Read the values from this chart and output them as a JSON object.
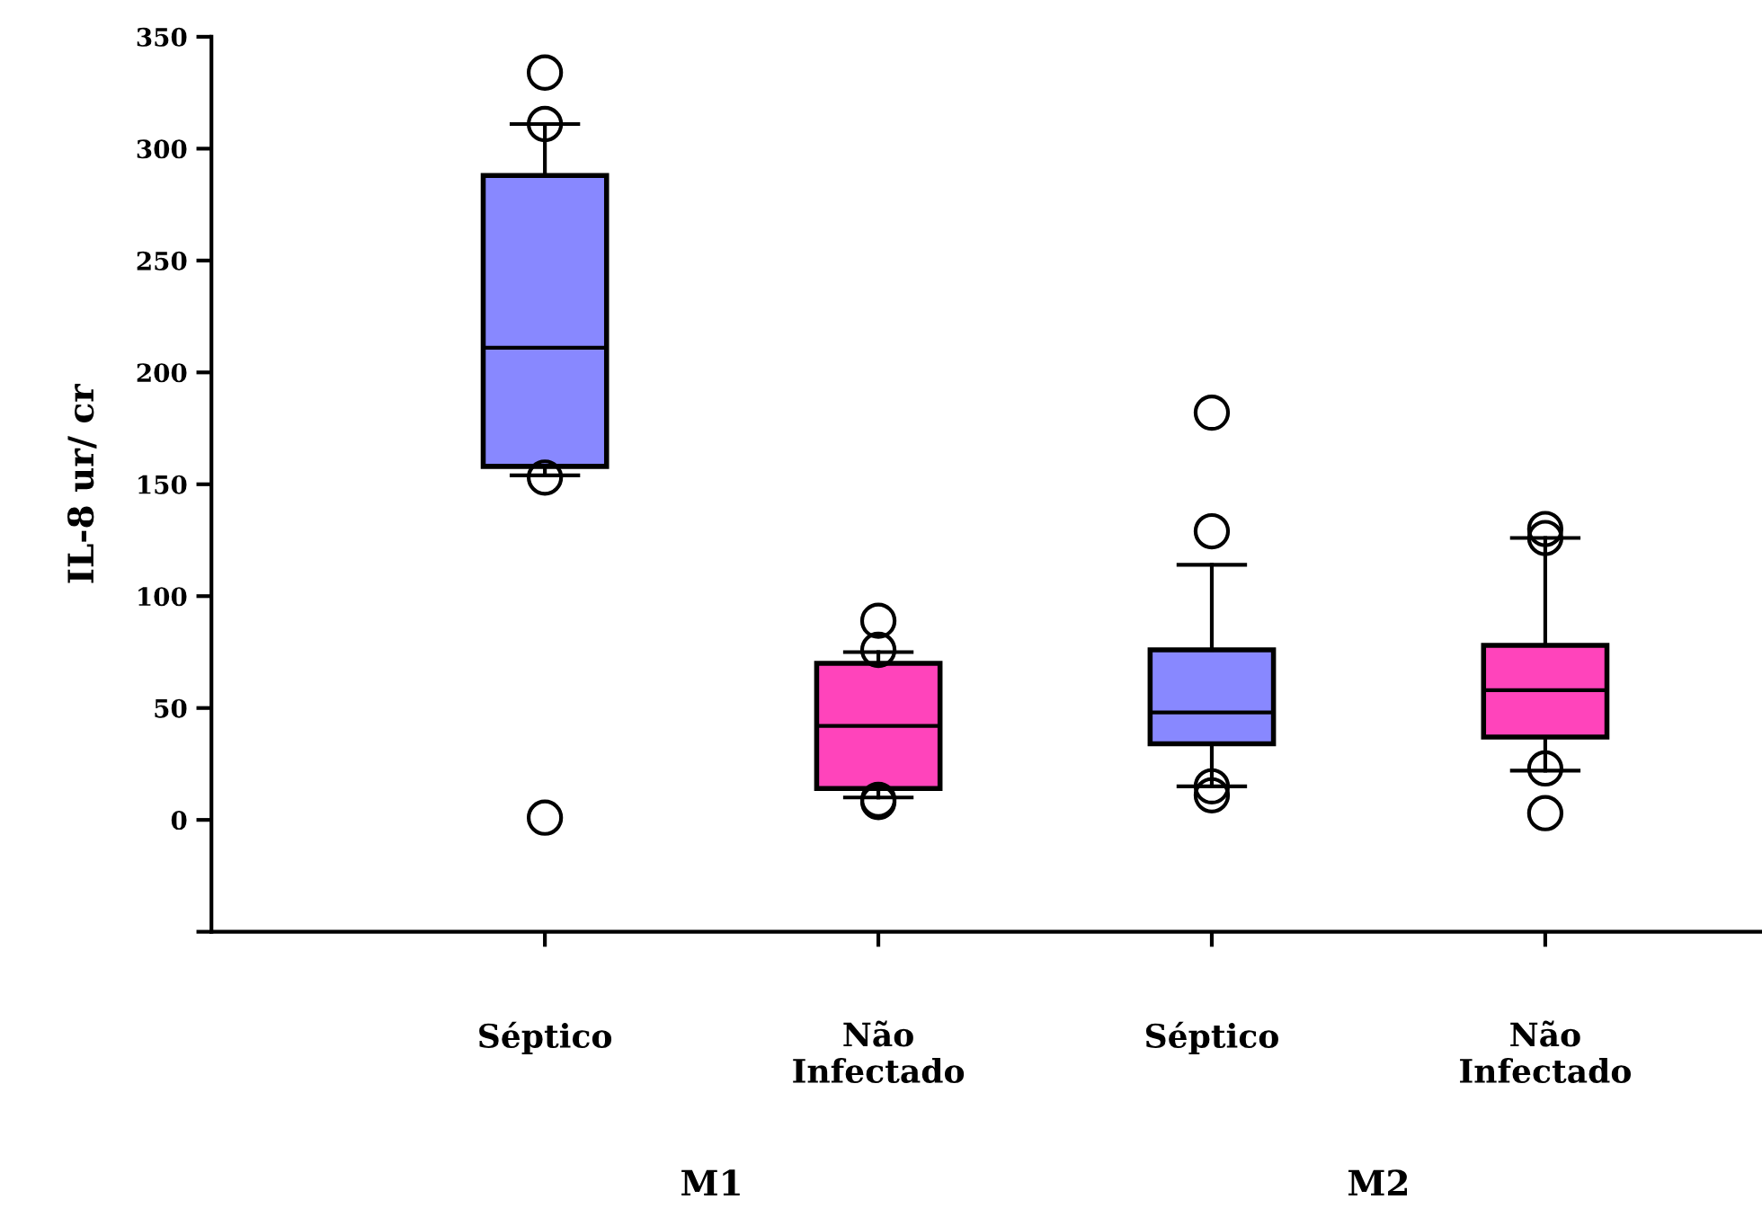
{
  "chart_data": {
    "type": "box",
    "ylabel": "IL-8 ur/ cr",
    "categories": [
      "Séptico",
      "Não\nInfectado",
      "Séptico",
      "Não\nInfectado"
    ],
    "colors": [
      "#8888ff",
      "#ff44bb",
      "#8888ff",
      "#ff44bb"
    ],
    "boxes": [
      {
        "low": 154,
        "q1": 158,
        "median": 211,
        "q3": 288,
        "high": 311,
        "outliers": [
          334,
          311,
          153,
          1
        ]
      },
      {
        "low": 10,
        "q1": 14,
        "median": 42,
        "q3": 70,
        "high": 75,
        "outliers": [
          89,
          76,
          9,
          8
        ]
      },
      {
        "low": 15,
        "q1": 34,
        "median": 48,
        "q3": 76,
        "high": 114,
        "outliers": [
          182,
          129,
          15,
          11
        ]
      },
      {
        "low": 22,
        "q1": 37,
        "median": 58,
        "q3": 78,
        "high": 126,
        "outliers": [
          130,
          126,
          23,
          3
        ]
      }
    ],
    "annotations": [
      "M1",
      "M2"
    ],
    "ylim": [
      -50,
      350
    ],
    "yticks": [
      {
        "value": -50,
        "label": null
      },
      0,
      50,
      100,
      150,
      200,
      250,
      300,
      350
    ],
    "grid": false,
    "legend": false
  }
}
